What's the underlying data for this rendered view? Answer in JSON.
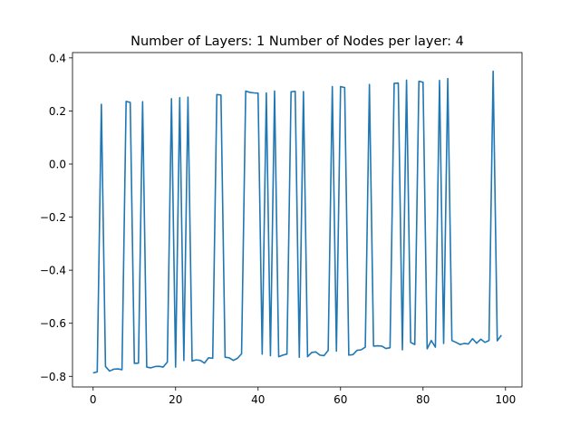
{
  "chart_data": {
    "type": "line",
    "title": "Number of Layers: 1 Number of Nodes per layer: 4",
    "xlabel": "",
    "ylabel": "",
    "xlim": [
      -5,
      104
    ],
    "ylim": [
      -0.84,
      0.42
    ],
    "xticks": [
      0,
      20,
      40,
      60,
      80,
      100
    ],
    "yticks": [
      -0.8,
      -0.6,
      -0.4,
      -0.2,
      0.0,
      0.2,
      0.4
    ],
    "xtick_labels": [
      "0",
      "20",
      "40",
      "60",
      "80",
      "100"
    ],
    "ytick_labels": [
      "−0.8",
      "−0.6",
      "−0.4",
      "−0.2",
      "0.0",
      "0.2",
      "0.4"
    ],
    "grid": false,
    "line_color": "#1f77b4",
    "series": [
      {
        "x": [
          0,
          1,
          2,
          3,
          4,
          5,
          6,
          7,
          8,
          9,
          10,
          11,
          12,
          13,
          14,
          15,
          16,
          17,
          18,
          19,
          20,
          21,
          22,
          23,
          24,
          25,
          26,
          27,
          28,
          29,
          30,
          31,
          32,
          33,
          34,
          35,
          36,
          37,
          38,
          39,
          40,
          41,
          42,
          43,
          44,
          45,
          46,
          47,
          48,
          49,
          50,
          51,
          52,
          53,
          54,
          55,
          56,
          57,
          58,
          59,
          60,
          61,
          62,
          63,
          64,
          65,
          66,
          67,
          68,
          69,
          70,
          71,
          72,
          73,
          74,
          75,
          76,
          77,
          78,
          79,
          80,
          81,
          82,
          83,
          84,
          85,
          86,
          87,
          88,
          89,
          90,
          91,
          92,
          93,
          94,
          95,
          96,
          97,
          98,
          99
        ],
        "values": [
          -0.787,
          -0.783,
          0.225,
          -0.763,
          -0.78,
          -0.773,
          -0.772,
          -0.775,
          0.236,
          0.232,
          -0.751,
          -0.75,
          0.235,
          -0.765,
          -0.768,
          -0.763,
          -0.762,
          -0.765,
          -0.746,
          0.246,
          -0.765,
          0.25,
          -0.74,
          0.252,
          -0.742,
          -0.738,
          -0.74,
          -0.75,
          -0.73,
          -0.732,
          0.262,
          0.26,
          -0.728,
          -0.73,
          -0.74,
          -0.732,
          -0.715,
          0.275,
          0.27,
          0.268,
          0.267,
          -0.716,
          0.268,
          -0.722,
          0.275,
          -0.726,
          -0.72,
          -0.716,
          0.272,
          0.274,
          -0.728,
          0.273,
          -0.726,
          -0.71,
          -0.708,
          -0.72,
          -0.722,
          -0.702,
          0.292,
          -0.705,
          0.292,
          0.288,
          -0.72,
          -0.718,
          -0.702,
          -0.7,
          -0.69,
          0.3,
          -0.686,
          -0.685,
          -0.686,
          -0.695,
          -0.692,
          0.304,
          0.305,
          -0.7,
          0.316,
          -0.672,
          -0.68,
          0.312,
          0.308,
          -0.696,
          -0.665,
          -0.69,
          0.315,
          -0.676,
          0.322,
          -0.665,
          -0.672,
          -0.68,
          -0.676,
          -0.678,
          -0.658,
          -0.675,
          -0.66,
          -0.672,
          -0.665,
          0.35,
          -0.666,
          -0.645
        ]
      }
    ]
  }
}
